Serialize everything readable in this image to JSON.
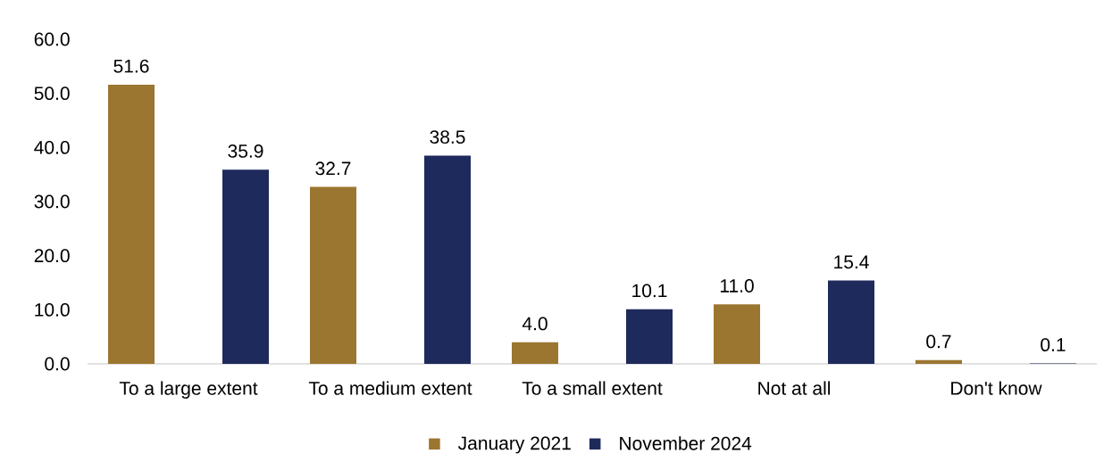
{
  "chart_data": {
    "type": "bar",
    "categories": [
      "To a large extent",
      "To a medium extent",
      "To a small extent",
      "Not at all",
      "Don't know"
    ],
    "series": [
      {
        "name": "January 2021",
        "color": "#9b7630",
        "values": [
          51.6,
          32.7,
          4.0,
          11.0,
          0.7
        ],
        "value_labels": [
          "51.6",
          "32.7",
          "4.0",
          "11.0",
          "0.7"
        ]
      },
      {
        "name": "November 2024",
        "color": "#1f2a5c",
        "values": [
          35.9,
          38.5,
          10.1,
          15.4,
          0.1
        ],
        "value_labels": [
          "35.9",
          "38.5",
          "10.1",
          "15.4",
          "0.1"
        ]
      }
    ],
    "ylim": [
      0,
      60
    ],
    "yticks": [
      {
        "value": 0,
        "label": "0.0"
      },
      {
        "value": 10,
        "label": "10.0"
      },
      {
        "value": 20,
        "label": "20.0"
      },
      {
        "value": 30,
        "label": "30.0"
      },
      {
        "value": 40,
        "label": "40.0"
      },
      {
        "value": 50,
        "label": "50.0"
      },
      {
        "value": 60,
        "label": "60.0"
      }
    ],
    "grid": false,
    "legend": "bottom"
  }
}
